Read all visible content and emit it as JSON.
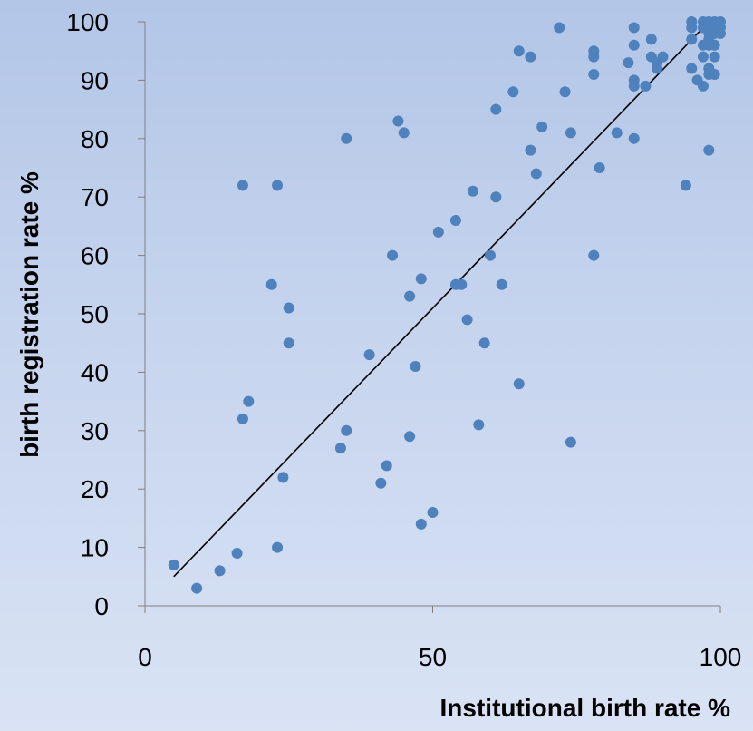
{
  "chart_data": {
    "type": "scatter",
    "title": "",
    "xlabel": "Institutional birth rate %",
    "ylabel": "birth registration rate %",
    "xlim": [
      0,
      100
    ],
    "ylim": [
      0,
      100
    ],
    "x_ticks": [
      0,
      50,
      100
    ],
    "y_ticks": [
      0,
      10,
      20,
      30,
      40,
      50,
      60,
      70,
      80,
      90,
      100
    ],
    "grid": false,
    "legend": "none",
    "marker_color": "#4f81bd",
    "line_color": "#000000",
    "trendline": {
      "x": [
        5,
        98
      ],
      "y": [
        5,
        100
      ]
    },
    "points": [
      [
        5,
        7
      ],
      [
        9,
        3
      ],
      [
        13,
        6
      ],
      [
        16,
        9
      ],
      [
        17,
        72
      ],
      [
        17,
        32
      ],
      [
        18,
        35
      ],
      [
        22,
        55
      ],
      [
        23,
        72
      ],
      [
        23,
        10
      ],
      [
        24,
        22
      ],
      [
        25,
        51
      ],
      [
        25,
        45
      ],
      [
        34,
        27
      ],
      [
        35,
        80
      ],
      [
        35,
        30
      ],
      [
        39,
        43
      ],
      [
        41,
        21
      ],
      [
        42,
        24
      ],
      [
        43,
        60
      ],
      [
        44,
        83
      ],
      [
        45,
        81
      ],
      [
        46,
        53
      ],
      [
        46,
        29
      ],
      [
        47,
        41
      ],
      [
        48,
        56
      ],
      [
        48,
        14
      ],
      [
        50,
        16
      ],
      [
        51,
        64
      ],
      [
        54,
        66
      ],
      [
        54,
        55
      ],
      [
        55,
        55
      ],
      [
        56,
        49
      ],
      [
        57,
        71
      ],
      [
        58,
        31
      ],
      [
        59,
        45
      ],
      [
        60,
        60
      ],
      [
        61,
        85
      ],
      [
        61,
        70
      ],
      [
        62,
        55
      ],
      [
        64,
        88
      ],
      [
        65,
        95
      ],
      [
        65,
        38
      ],
      [
        67,
        94
      ],
      [
        67,
        78
      ],
      [
        68,
        74
      ],
      [
        69,
        82
      ],
      [
        72,
        99
      ],
      [
        73,
        88
      ],
      [
        74,
        81
      ],
      [
        74,
        28
      ],
      [
        78,
        95
      ],
      [
        78,
        94
      ],
      [
        78,
        91
      ],
      [
        78,
        60
      ],
      [
        79,
        75
      ],
      [
        82,
        81
      ],
      [
        84,
        93
      ],
      [
        85,
        99
      ],
      [
        85,
        96
      ],
      [
        85,
        90
      ],
      [
        85,
        89
      ],
      [
        85,
        80
      ],
      [
        87,
        89
      ],
      [
        88,
        97
      ],
      [
        88,
        94
      ],
      [
        89,
        93
      ],
      [
        89,
        92
      ],
      [
        90,
        94
      ],
      [
        94,
        72
      ],
      [
        95,
        100
      ],
      [
        95,
        99
      ],
      [
        95,
        97
      ],
      [
        95,
        92
      ],
      [
        96,
        90
      ],
      [
        97,
        100
      ],
      [
        97,
        99
      ],
      [
        97,
        96
      ],
      [
        97,
        94
      ],
      [
        97,
        89
      ],
      [
        98,
        100
      ],
      [
        98,
        99
      ],
      [
        98,
        98
      ],
      [
        98,
        97
      ],
      [
        98,
        96
      ],
      [
        98,
        92
      ],
      [
        98,
        91
      ],
      [
        98,
        78
      ],
      [
        99,
        100
      ],
      [
        99,
        99
      ],
      [
        99,
        98
      ],
      [
        99,
        96
      ],
      [
        99,
        94
      ],
      [
        99,
        91
      ],
      [
        100,
        100
      ],
      [
        100,
        99
      ],
      [
        100,
        98
      ]
    ]
  }
}
